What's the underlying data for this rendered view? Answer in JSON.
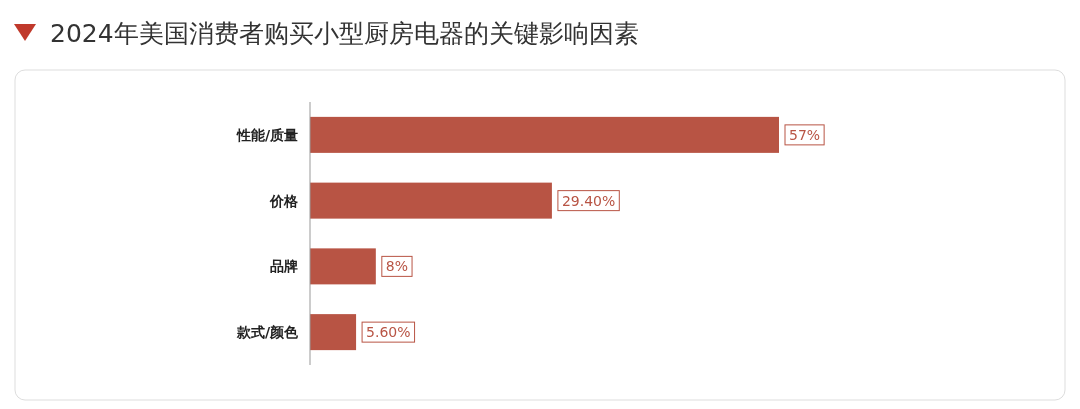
{
  "chart_data": {
    "type": "bar",
    "orientation": "horizontal",
    "title": "2024年美国消费者购买小型厨房电器的关键影响因素",
    "categories": [
      "性能/质量",
      "价格",
      "品牌",
      "款式/颜色"
    ],
    "values": [
      57,
      29.4,
      8,
      5.6
    ],
    "color": "#b85444",
    "value_labels": [
      "57%",
      "29.40%",
      "8%",
      "5.60%"
    ]
  }
}
